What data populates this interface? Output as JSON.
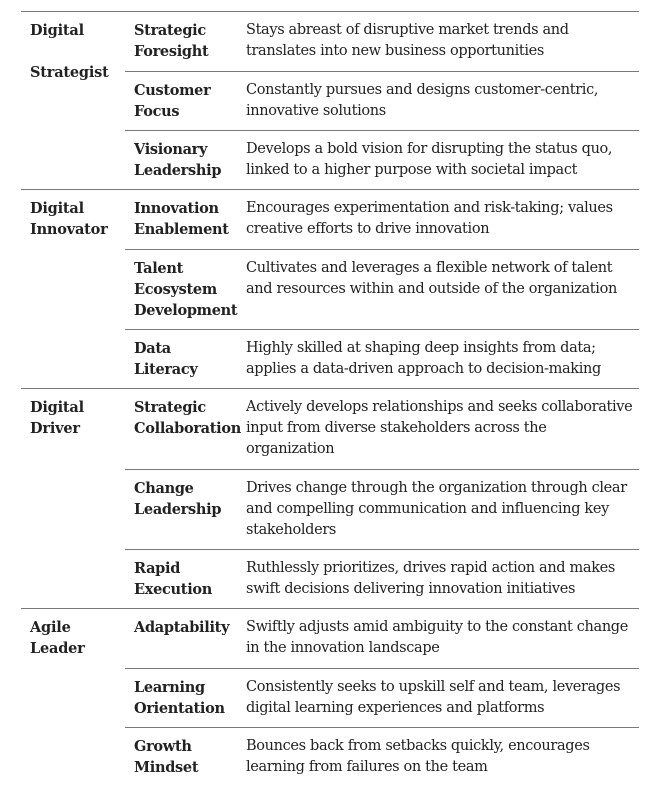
{
  "groups": [
    {
      "label_line1": "Digital",
      "label_line2": "Strategist",
      "rows": [
        {
          "competency": "Strategic Foresight",
          "description": "Stays abreast of disruptive market trends and translates into new business opportunities"
        },
        {
          "competency": "Customer Focus",
          "description": "Constantly pursues and designs customer-centric, innovative solutions"
        },
        {
          "competency": "Visionary Leadership",
          "description": "Develops a bold vision for disrupting the status quo, linked to a higher purpose with societal impact"
        }
      ]
    },
    {
      "label_line1": "Digital",
      "label_line2": "Innovator",
      "rows": [
        {
          "competency": "Innovation Enablement",
          "description": "Encourages experimentation and risk-taking; values creative efforts to drive innovation"
        },
        {
          "competency": "Talent Ecosystem Development",
          "description": "Cultivates and leverages a flexible network of talent and resources within and outside of the organization"
        },
        {
          "competency": "Data Literacy",
          "description": "Highly skilled at shaping deep insights from data; applies a data-driven approach to decision-making"
        }
      ]
    },
    {
      "label_line1": "Digital",
      "label_line2": "Driver",
      "rows": [
        {
          "competency": "Strategic Collaboration",
          "description": "Actively develops relationships and seeks collaborative input from diverse stakeholders across the organization"
        },
        {
          "competency": "Change Leadership",
          "description": "Drives change through the organization through clear and compelling communication and influencing key stakeholders"
        },
        {
          "competency": "Rapid Execution",
          "description": "Ruthlessly prioritizes, drives rapid action and makes swift decisions delivering innovation initiatives"
        }
      ]
    },
    {
      "label_line1": "Agile",
      "label_line2": "Leader",
      "rows": [
        {
          "competency": "Adaptability",
          "description": "Swiftly adjusts amid ambiguity to the constant change in the innovation landscape"
        },
        {
          "competency": "Learning Orientation",
          "description": "Consistently seeks to upskill self and team, leverages digital learning experiences and platforms"
        },
        {
          "competency": "Growth Mindset",
          "description": "Bounces back from setbacks quickly, encourages learning from failures on the team"
        }
      ]
    }
  ]
}
